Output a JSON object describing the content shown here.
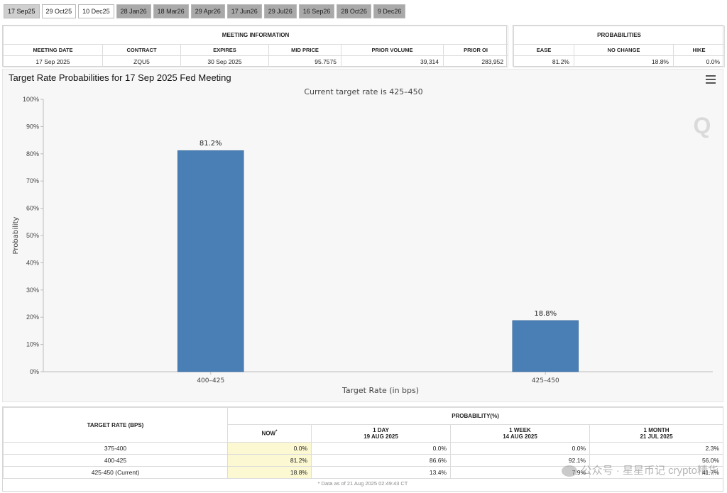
{
  "tabs": [
    {
      "label": "17 Sep25",
      "state": "active"
    },
    {
      "label": "29 Oct25",
      "state": "light"
    },
    {
      "label": "10 Dec25",
      "state": "light"
    },
    {
      "label": "28 Jan26",
      "state": "dark"
    },
    {
      "label": "18 Mar26",
      "state": "dark"
    },
    {
      "label": "29 Apr26",
      "state": "dark"
    },
    {
      "label": "17 Jun26",
      "state": "dark"
    },
    {
      "label": "29 Jul26",
      "state": "dark"
    },
    {
      "label": "16 Sep26",
      "state": "dark"
    },
    {
      "label": "28 Oct26",
      "state": "dark"
    },
    {
      "label": "9 Dec26",
      "state": "dark"
    }
  ],
  "meeting": {
    "heading": "MEETING INFORMATION",
    "columns": [
      "MEETING DATE",
      "CONTRACT",
      "EXPIRES",
      "MID PRICE",
      "PRIOR VOLUME",
      "PRIOR OI"
    ],
    "row": [
      "17 Sep 2025",
      "ZQU5",
      "30 Sep 2025",
      "95.7575",
      "39,314",
      "283,952"
    ]
  },
  "probabilities": {
    "heading": "PROBABILITIES",
    "columns": [
      "EASE",
      "NO CHANGE",
      "HIKE"
    ],
    "row": [
      "81.2%",
      "18.8%",
      "0.0%"
    ]
  },
  "chart": {
    "title": "Target Rate Probabilities for 17 Sep 2025 Fed Meeting",
    "subtitle": "Current target rate is 425–450",
    "logo_letter": "Q"
  },
  "chart_data": {
    "type": "bar",
    "categories": [
      "400–425",
      "425–450"
    ],
    "values": [
      81.2,
      18.8
    ],
    "value_labels": [
      "81.2%",
      "18.8%"
    ],
    "xlabel": "Target Rate (in bps)",
    "ylabel": "Probability",
    "ylim": [
      0,
      100
    ],
    "yticks": [
      "0%",
      "10%",
      "20%",
      "30%",
      "40%",
      "50%",
      "60%",
      "70%",
      "80%",
      "90%",
      "100%"
    ],
    "bar_color": "#4a7fb5",
    "grid": false
  },
  "prob_table": {
    "row_header": "TARGET RATE (BPS)",
    "group_header": "PROBABILITY(%)",
    "columns": [
      {
        "label": "NOW",
        "sup": "*",
        "date": ""
      },
      {
        "label": "1 DAY",
        "date": "19 AUG 2025"
      },
      {
        "label": "1 WEEK",
        "date": "14 AUG 2025"
      },
      {
        "label": "1 MONTH",
        "date": "21 JUL 2025"
      }
    ],
    "rows": [
      {
        "rate": "375-400",
        "values": [
          "0.0%",
          "0.0%",
          "0.0%",
          "2.3%"
        ]
      },
      {
        "rate": "400-425",
        "values": [
          "81.2%",
          "86.6%",
          "92.1%",
          "56.0%"
        ]
      },
      {
        "rate": "425-450 (Current)",
        "values": [
          "18.8%",
          "13.4%",
          "7.9%",
          "41.7%"
        ]
      }
    ],
    "footnote": "* Data as of 21 Aug 2025 02:49:43 CT"
  },
  "watermark": "公众号 · 星星币记 crypto精华"
}
